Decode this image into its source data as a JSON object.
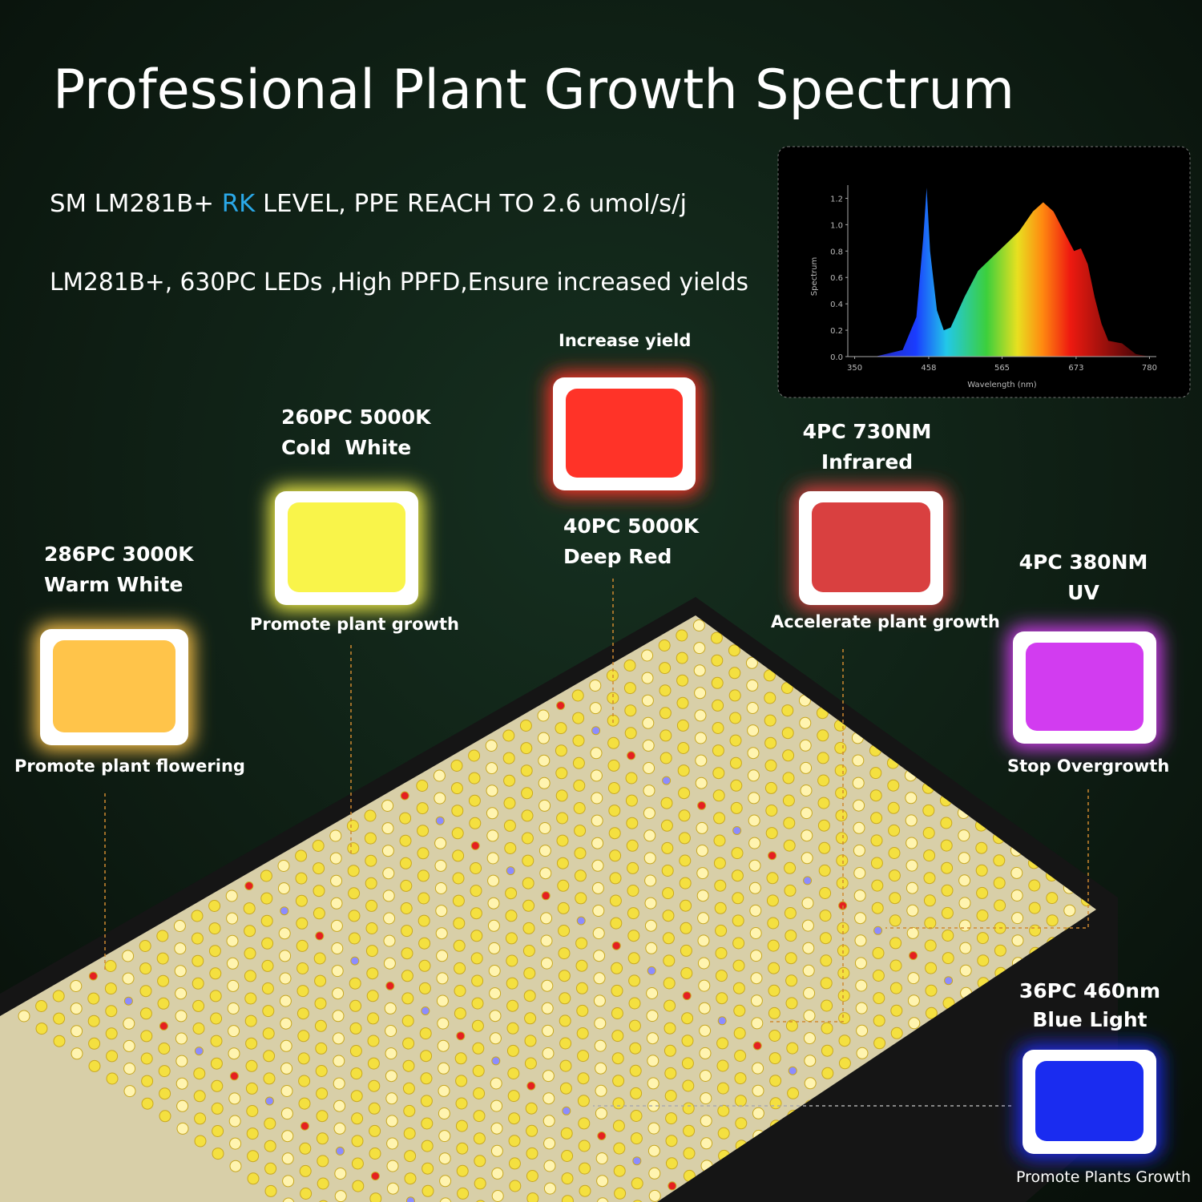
{
  "header": {
    "title": "Professional Plant Growth Spectrum",
    "line1": [
      "SM LM281B+ ",
      "RK",
      " LEVEL, PPE REACH TO 2.6 umol/s/j"
    ],
    "line2": "LM281B+, 630PC LEDs ,High PPFD,Ensure increased yields"
  },
  "chart_data": {
    "type": "area",
    "x_label": "Wavelength (nm)",
    "y_label": "Spectrum",
    "x": [
      350,
      380,
      420,
      440,
      450,
      455,
      460,
      470,
      480,
      490,
      510,
      530,
      550,
      570,
      590,
      610,
      625,
      640,
      660,
      670,
      680,
      690,
      700,
      710,
      720,
      740,
      760,
      780
    ],
    "values": [
      0,
      0,
      0.05,
      0.3,
      0.9,
      1.28,
      0.8,
      0.35,
      0.2,
      0.22,
      0.45,
      0.65,
      0.75,
      0.85,
      0.95,
      1.1,
      1.17,
      1.1,
      0.9,
      0.8,
      0.82,
      0.7,
      0.45,
      0.25,
      0.12,
      0.1,
      0.02,
      0
    ],
    "xlim": [
      340,
      790
    ],
    "ylim": [
      0,
      1.3
    ],
    "xticks": [
      350,
      458,
      565,
      673,
      780
    ],
    "yticks": [
      {
        "value": 0,
        "label": "0.0"
      },
      {
        "value": 0.2,
        "label": "0.2"
      },
      {
        "value": 0.4,
        "label": "0.4"
      },
      {
        "value": 0.6,
        "label": "0.6"
      },
      {
        "value": 0.8,
        "label": "0.8"
      },
      {
        "value": 1,
        "label": "1.0"
      },
      {
        "value": 1.2,
        "label": "1.2"
      }
    ]
  },
  "leds": [
    {
      "label": [
        "286PC 3000K",
        "Warm White"
      ],
      "caption": "Promote plant flowering",
      "color": "#ffc44a"
    },
    {
      "label": [
        "260PC 5000K",
        "Cold  White"
      ],
      "caption": "Promote plant growth",
      "color": "#f9f44a"
    },
    {
      "label": [
        "40PC 5000K",
        "Deep Red"
      ],
      "caption": "Increase yield",
      "color": "#ff3328"
    },
    {
      "label": [
        "4PC 730NM",
        "Infrared"
      ],
      "caption": "Accelerate plant growth",
      "color": "#d94040"
    },
    {
      "label": [
        "4PC 380NM",
        "UV"
      ],
      "caption": "Stop Overgrowth",
      "color": "#d23cf0"
    },
    {
      "label": [
        "36PC 460nm",
        "Blue Light"
      ],
      "caption": "Promote Plants Growth",
      "color": "#1a2cf0"
    }
  ]
}
